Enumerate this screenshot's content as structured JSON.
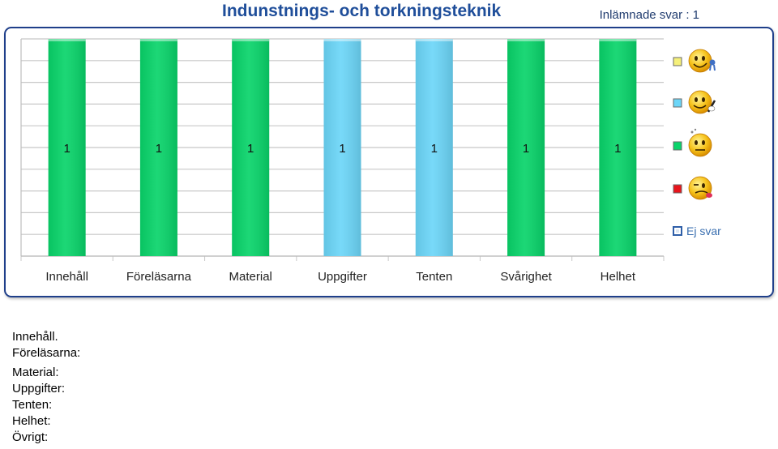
{
  "header": {
    "title": "Indunstnings- och torkningsteknik",
    "responses": "Inlämnade svar : 1"
  },
  "chart_data": {
    "type": "bar",
    "stacked": true,
    "categories": [
      "Innehåll",
      "Föreläsarna",
      "Material",
      "Uppgifter",
      "Tenten",
      "Svårighet",
      "Helhet"
    ],
    "series": [
      {
        "key": "yellow",
        "color": "#f5f07a",
        "values": [
          0,
          0,
          0,
          0,
          0,
          0,
          0
        ]
      },
      {
        "key": "cyan",
        "color": "#6cd6f8",
        "values": [
          0,
          0,
          0,
          1,
          1,
          0,
          0
        ]
      },
      {
        "key": "green",
        "color": "#09d46a",
        "values": [
          1,
          1,
          1,
          0,
          0,
          1,
          1
        ]
      },
      {
        "key": "red",
        "color": "#e8141c",
        "values": [
          0,
          0,
          0,
          0,
          0,
          0,
          0
        ]
      },
      {
        "name": "Ej svar",
        "key": "none",
        "color": "#dbe6f3",
        "values": [
          0,
          0,
          0,
          0,
          0,
          0,
          0
        ]
      }
    ],
    "data_labels": [
      "1",
      "1",
      "1",
      "1",
      "1",
      "1",
      "1"
    ],
    "ylim": [
      0,
      1
    ],
    "grid": true,
    "legend_position": "right",
    "legend_icons": [
      "smiley-rosette-icon",
      "smiley-writing-icon",
      "smiley-thinking-icon",
      "smiley-tongue-icon",
      ""
    ]
  },
  "notes": {
    "lines": [
      "Innehåll.",
      "Föreläsarna:",
      "Material:",
      "Uppgifter:",
      "Tenten:",
      "Helhet:",
      "Övrigt:"
    ]
  }
}
